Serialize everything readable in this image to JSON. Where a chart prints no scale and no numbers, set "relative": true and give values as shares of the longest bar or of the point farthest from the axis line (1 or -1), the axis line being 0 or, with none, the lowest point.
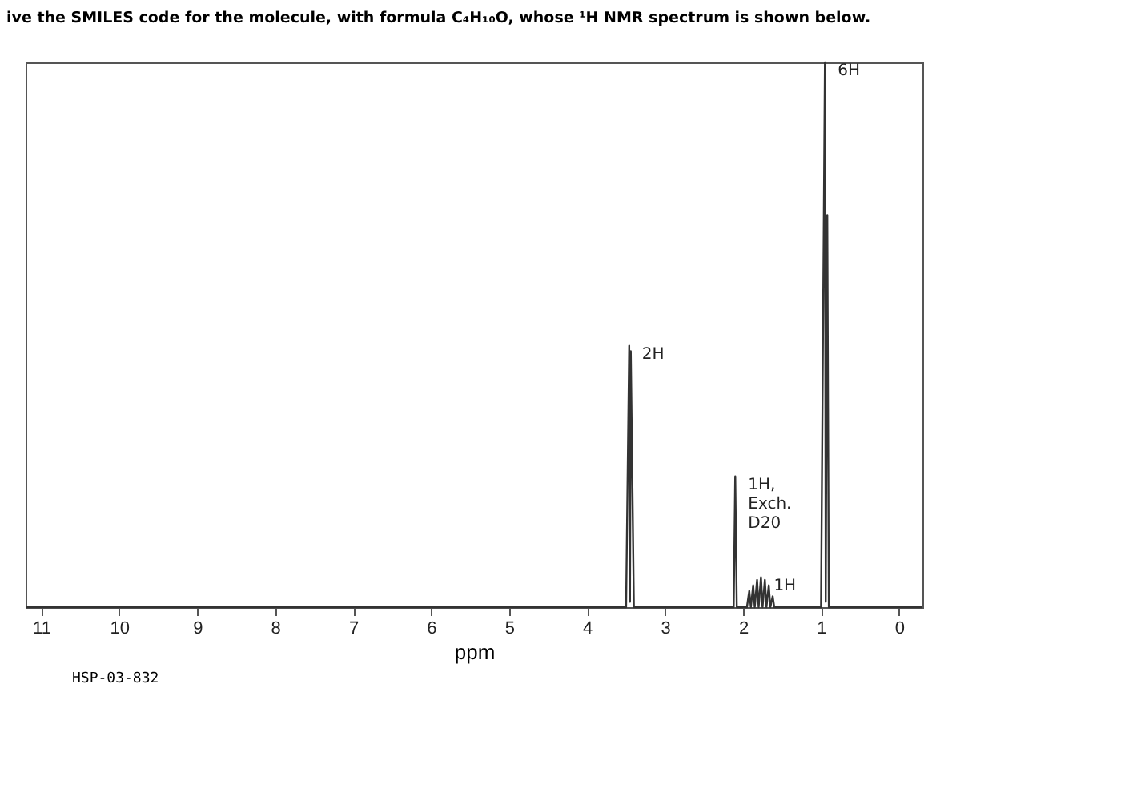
{
  "chart_data": {
    "type": "line",
    "title": "ive the SMILES code for the molecule, with formula C₄H₁₀O, whose ¹H NMR spectrum is shown below.",
    "xlabel": "ppm",
    "relative": true,
    "xlim": [
      11.2,
      -0.3
    ],
    "xticks": [
      11,
      10,
      9,
      8,
      7,
      6,
      5,
      4,
      3,
      2,
      1,
      0
    ],
    "grid": false,
    "marker": "none",
    "line_style": "solid",
    "series": [
      {
        "color": "#333333",
        "x": [
          11.2,
          3.5,
          3.46,
          3.45,
          3.44,
          3.4,
          2.12,
          2.1,
          2.08,
          1.95,
          1.92,
          1.9,
          1.87,
          1.85,
          1.82,
          1.8,
          1.77,
          1.75,
          1.72,
          1.7,
          1.67,
          1.65,
          1.62,
          1.6,
          1.0,
          0.95,
          0.94,
          0.92,
          0.9,
          -0.3
        ],
        "values": [
          0,
          0,
          0.48,
          0.01,
          0.47,
          0,
          0,
          0.24,
          0,
          0,
          0.03,
          0,
          0.04,
          0,
          0.05,
          0,
          0.055,
          0,
          0.05,
          0,
          0.04,
          0,
          0.02,
          0,
          0,
          1.0,
          0.01,
          0.72,
          0,
          0
        ]
      }
    ],
    "annotations": [
      {
        "text": "2H",
        "x": 3.46,
        "y": 0.48
      },
      {
        "text": "1H,\nExch.\nD20",
        "x": 2.1,
        "y": 0.24
      },
      {
        "text": "1H",
        "x": 1.77,
        "y": 0.055
      },
      {
        "text": "6H",
        "x": 0.95,
        "y": 1.0
      },
      "HSP-03-832"
    ]
  }
}
